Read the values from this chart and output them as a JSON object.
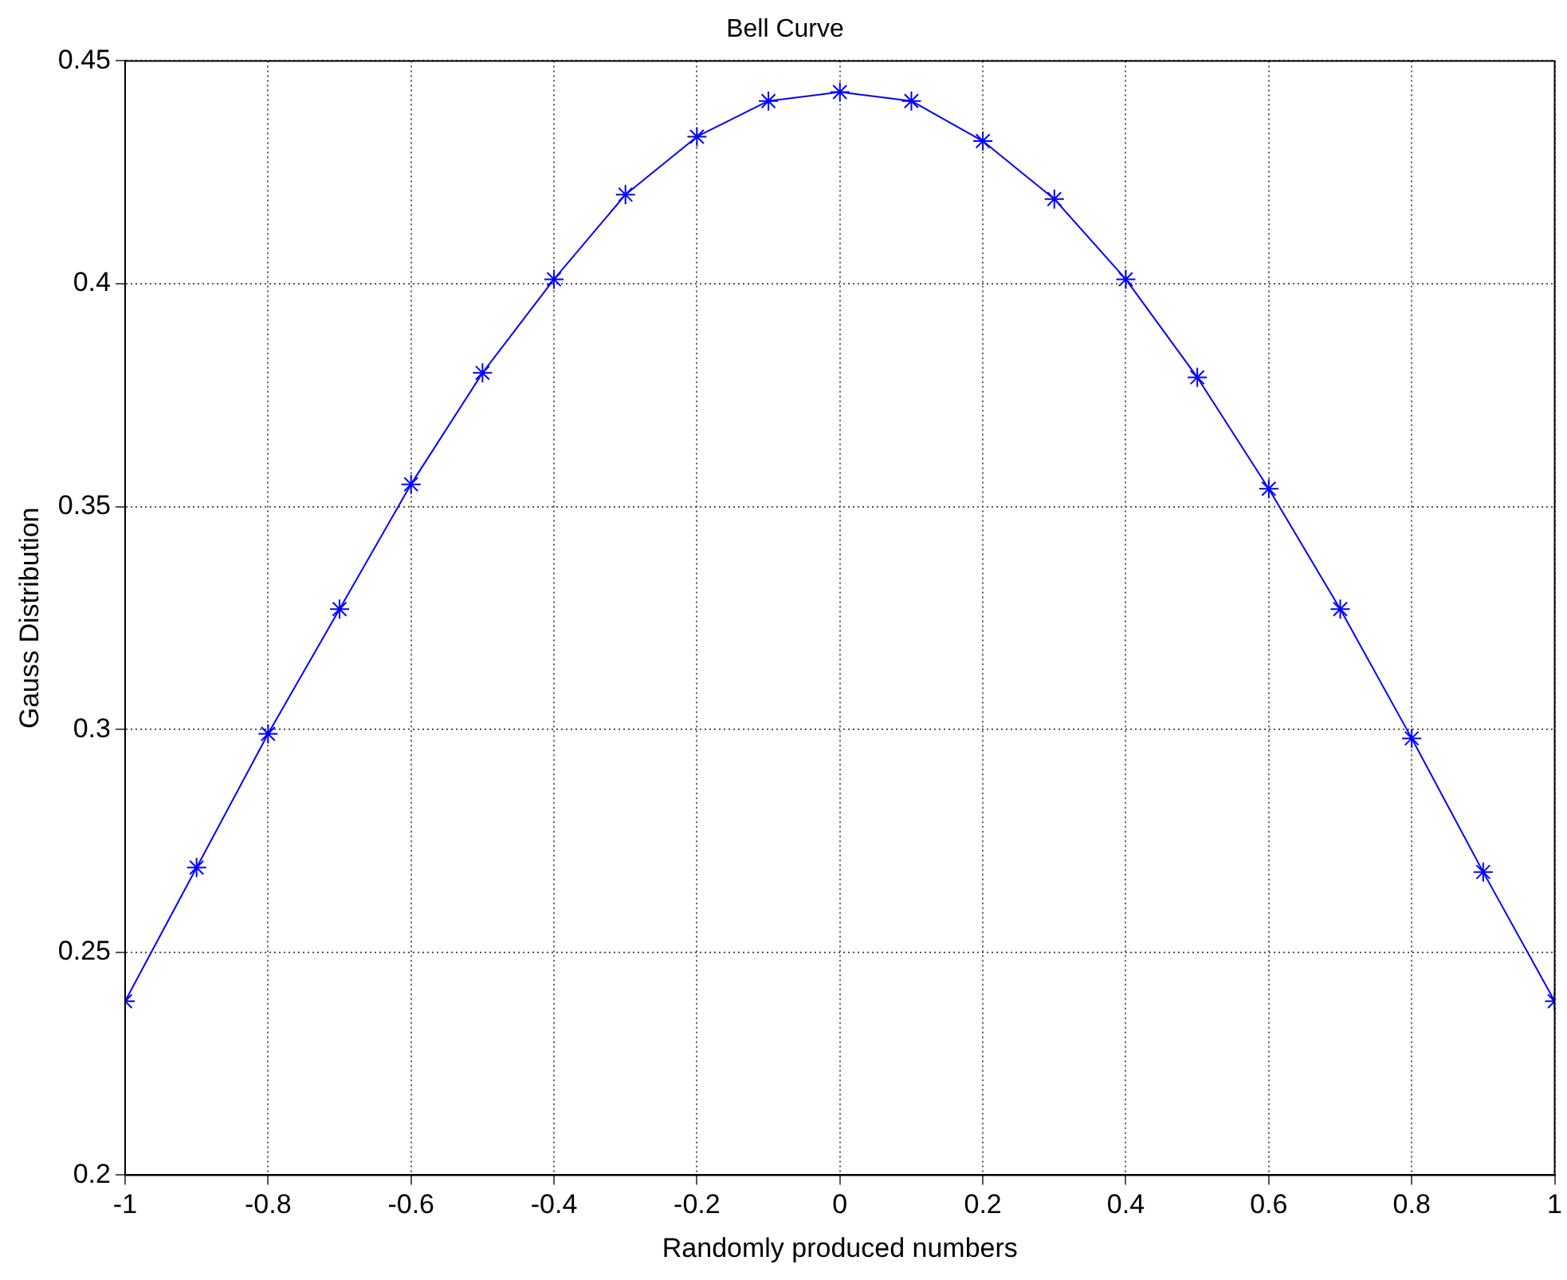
{
  "chart_data": {
    "type": "line",
    "title": "Bell Curve",
    "xlabel": "Randomly produced numbers",
    "ylabel": "Gauss Distribution",
    "x": [
      -1,
      -0.9,
      -0.8,
      -0.7,
      -0.6,
      -0.5,
      -0.4,
      -0.3,
      -0.2,
      -0.1,
      0,
      0.1,
      0.2,
      0.3,
      0.4,
      0.5,
      0.6,
      0.7,
      0.8,
      0.9,
      1
    ],
    "series": [
      {
        "color": "#0000ff",
        "values": [
          0.239,
          0.269,
          0.299,
          0.327,
          0.355,
          0.38,
          0.401,
          0.42,
          0.433,
          0.441,
          0.443,
          0.441,
          0.432,
          0.419,
          0.401,
          0.379,
          0.354,
          0.327,
          0.298,
          0.268,
          0.239
        ]
      }
    ],
    "xlim": [
      -1,
      1
    ],
    "xticks": [
      -1,
      -0.8,
      -0.6,
      -0.4,
      -0.2,
      0,
      0.2,
      0.4,
      0.6,
      0.8,
      1
    ],
    "ylim": [
      0.2,
      0.45
    ],
    "yticks": [
      0.2,
      0.25,
      0.3,
      0.35,
      0.4,
      0.45
    ],
    "grid": true,
    "legend": false,
    "marker": "cross",
    "line_style": "solid"
  }
}
